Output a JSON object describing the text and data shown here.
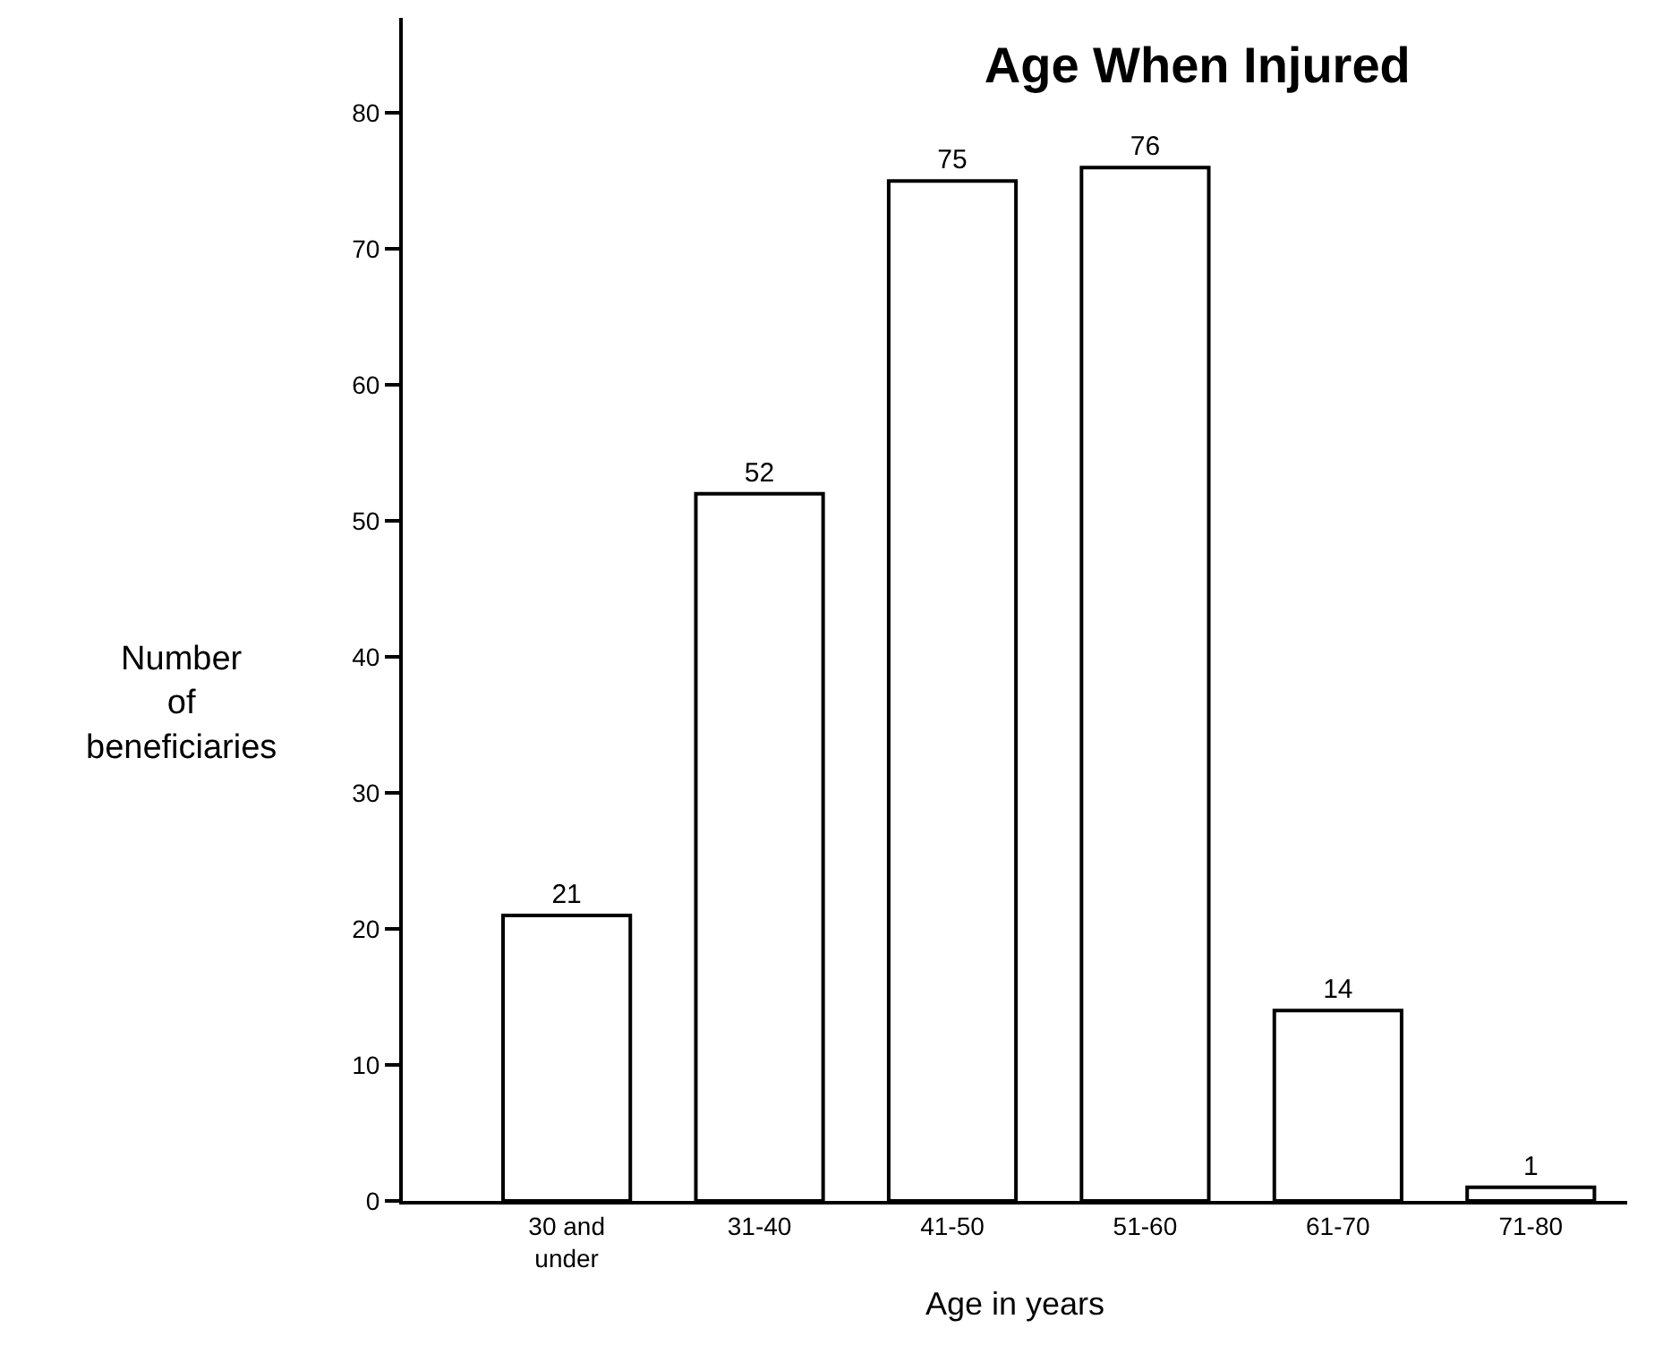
{
  "chart_data": {
    "type": "bar",
    "title": "Age When Injured",
    "xlabel": "Age in years",
    "ylabel": "Number\nof\nbeneficiaries",
    "categories": [
      "30 and\nunder",
      "31-40",
      "41-50",
      "51-60",
      "61-70",
      "71-80"
    ],
    "values": [
      21,
      52,
      75,
      76,
      14,
      1
    ],
    "color": "#ffffff",
    "ylim": [
      0,
      87
    ],
    "yticks": [
      0,
      10,
      20,
      30,
      40,
      50,
      60,
      70,
      80
    ],
    "data_labels": true
  }
}
